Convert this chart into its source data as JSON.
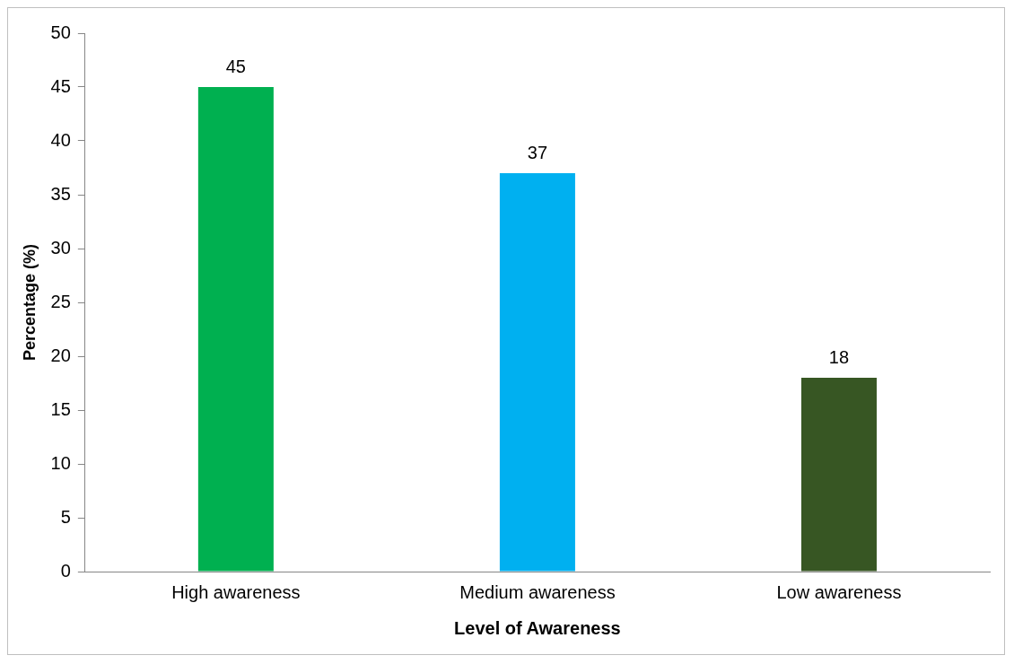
{
  "chart_data": {
    "type": "bar",
    "xlabel": "Level of Awareness",
    "ylabel": "Percentage (%)",
    "categories": [
      "High awareness",
      "Medium awareness",
      "Low awareness"
    ],
    "values": [
      45,
      37,
      18
    ],
    "colors": [
      "#00b050",
      "#00b0f0",
      "#375623"
    ],
    "ylim": [
      0,
      50
    ],
    "yticks": [
      0,
      5,
      10,
      15,
      20,
      25,
      30,
      35,
      40,
      45,
      50
    ],
    "grid": false,
    "legend": false,
    "data_labels": true
  }
}
